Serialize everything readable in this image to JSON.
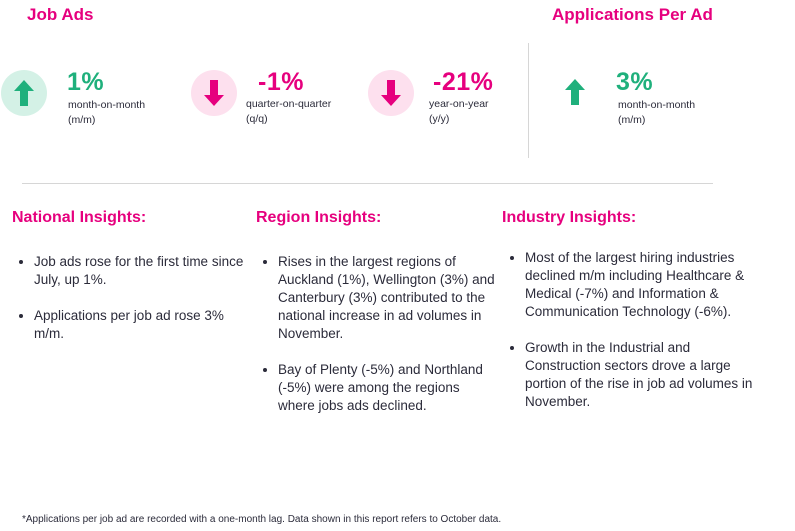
{
  "job_ads": {
    "title": "Job Ads",
    "stats": [
      {
        "value": "1%",
        "label_line1": "month-on-month",
        "label_line2": "(m/m)",
        "direction": "up",
        "icon": "arrow-up-icon",
        "circle_color": "#d4f1e6",
        "arrow_color": "#1fb07c",
        "value_color": "#1fb07c"
      },
      {
        "value": "-1%",
        "label_line1": "quarter-on-quarter",
        "label_line2": "(q/q)",
        "direction": "down",
        "icon": "arrow-down-icon",
        "circle_color": "#fde0ee",
        "arrow_color": "#e6007e",
        "value_color": "#e6007e"
      },
      {
        "value": "-21%",
        "label_line1": "year-on-year",
        "label_line2": "(y/y)",
        "direction": "down",
        "icon": "arrow-down-icon",
        "circle_color": "#fde0ee",
        "arrow_color": "#e6007e",
        "value_color": "#e6007e"
      }
    ]
  },
  "applications_per_ad": {
    "title": "Applications Per Ad",
    "stat": {
      "value": "3%",
      "label_line1": "month-on-month",
      "label_line2": "(m/m)",
      "direction": "up",
      "icon": "arrow-up-icon",
      "arrow_color": "#1fb07c",
      "value_color": "#1fb07c"
    }
  },
  "insights": {
    "national": {
      "title": "National Insights:",
      "bullets": [
        "Job ads rose for the first time since July, up 1%.",
        "Applications per job ad rose 3% m/m."
      ]
    },
    "region": {
      "title": "Region Insights:",
      "bullets": [
        "Rises in the largest regions of Auckland (1%), Wellington (3%) and Canterbury (3%) contributed to the national increase in ad volumes in November.",
        "Bay of Plenty (-5%) and Northland (-5%) were among the regions where jobs ads declined."
      ]
    },
    "industry": {
      "title": "Industry Insights:",
      "bullets": [
        "Most of the largest hiring industries declined m/m including Healthcare & Medical (-7%) and Information & Communication Technology (-6%).",
        "Growth in the Industrial and Construction sectors drove a large portion of the rise in job ad volumes in November."
      ]
    }
  },
  "footnote": "*Applications per job ad are recorded with a one-month lag. Data shown in this report refers to October data.",
  "colors": {
    "accent_pink": "#e6007e",
    "accent_green": "#1fb07c"
  }
}
